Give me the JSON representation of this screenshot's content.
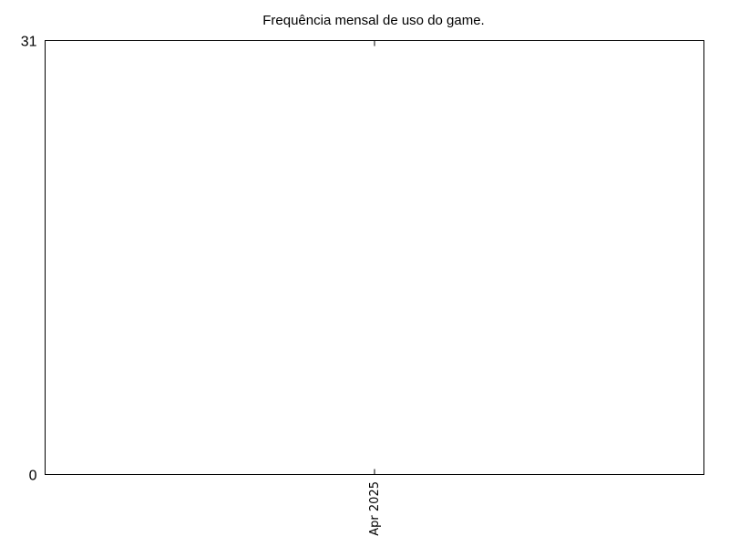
{
  "chart_data": {
    "type": "bar",
    "title": "Frequência mensal de uso do game.",
    "xlabel": "",
    "ylabel": "",
    "categories": [
      "Apr 2025"
    ],
    "values": [
      0
    ],
    "ylim": [
      0,
      31
    ],
    "yticks": [
      "0",
      "31"
    ],
    "grid": false,
    "legend": "none",
    "colors": {
      "axis": "#000000",
      "bar": "#9400d3",
      "background": "#ffffff"
    }
  }
}
